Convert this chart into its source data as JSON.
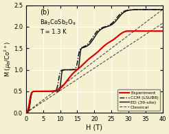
{
  "title_label": "(b)",
  "compound": "Ba$_3$CoSb$_2$O$_9$",
  "temperature": "T = 1.3 K",
  "xlabel": "H (T)",
  "ylabel": "M ($\\mu_B$/Co$^{2+}$)",
  "xlim": [
    0,
    40
  ],
  "ylim": [
    0,
    2.5
  ],
  "xticks": [
    0,
    5,
    10,
    15,
    20,
    25,
    30,
    35,
    40
  ],
  "yticks": [
    0,
    0.5,
    1.0,
    1.5,
    2.0,
    2.5
  ],
  "background_color": "#f5f0d0",
  "grid_color": "#ffffff",
  "exp_color": "#dd0000",
  "ed_color": "#111111",
  "ccm_color": "#111111",
  "classical_color": "#333333"
}
